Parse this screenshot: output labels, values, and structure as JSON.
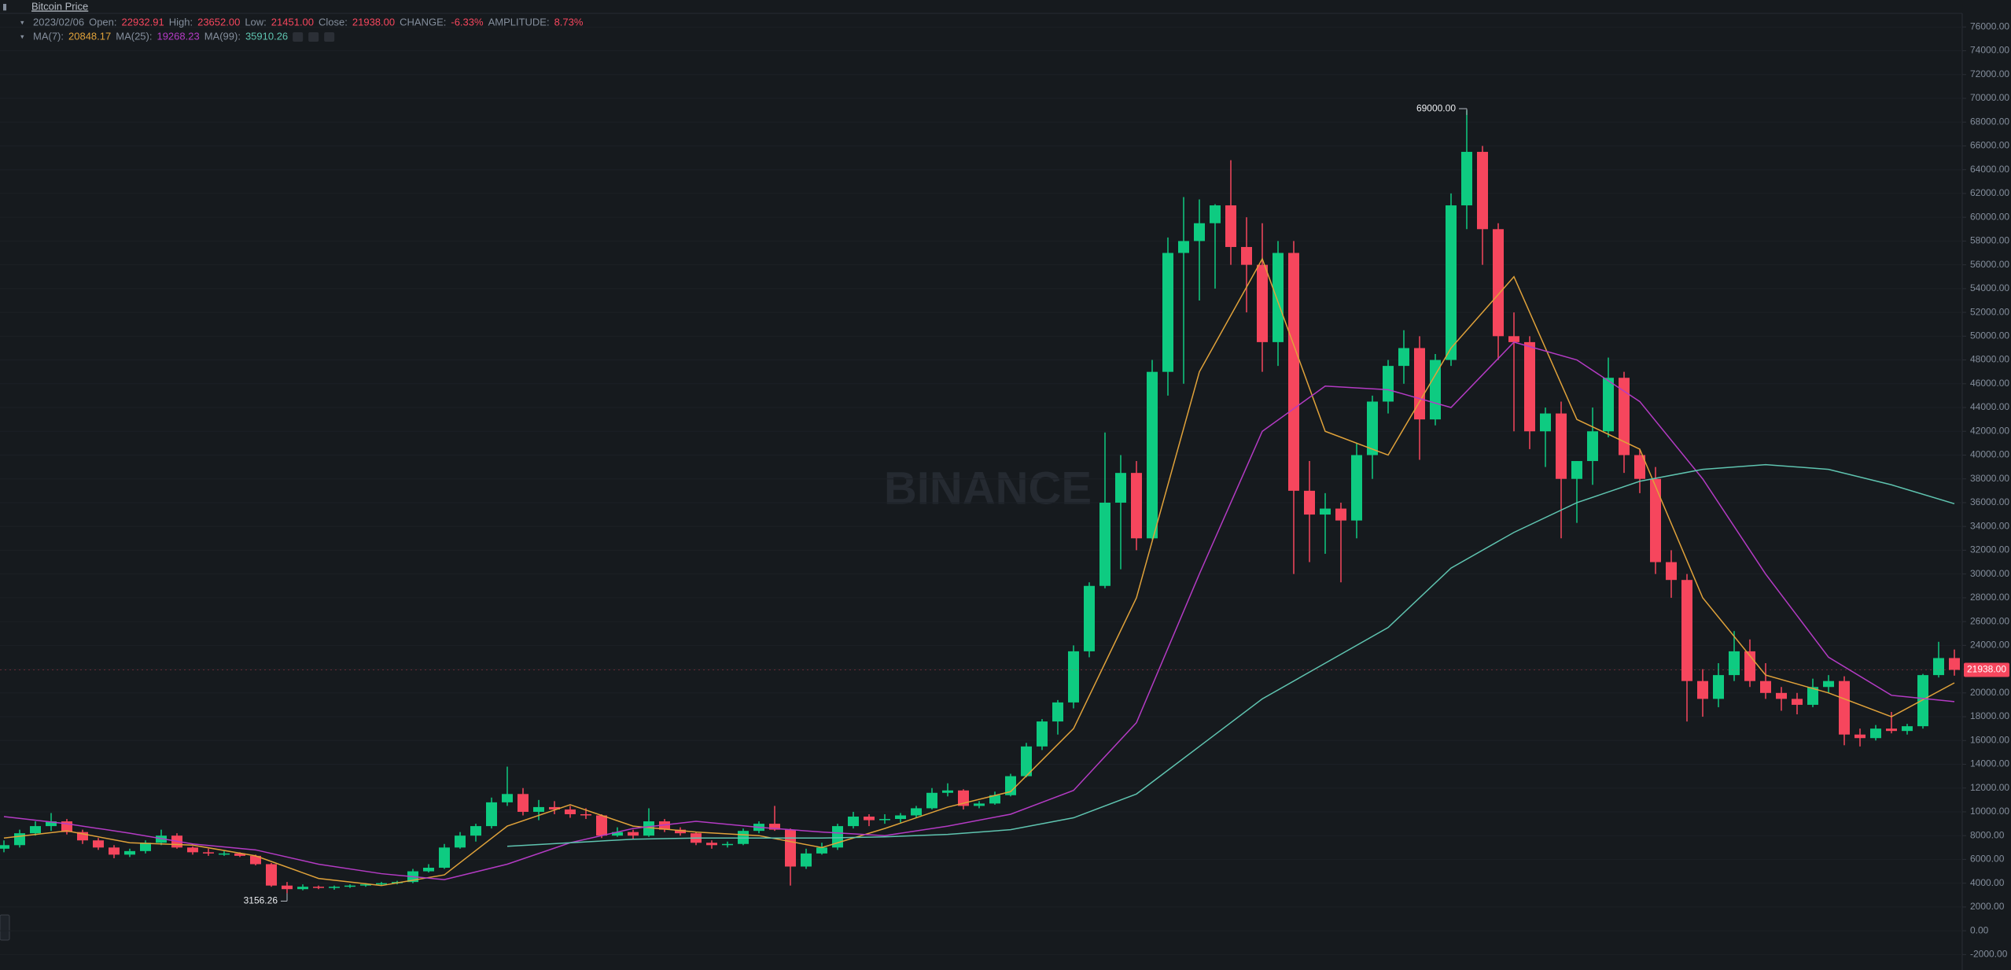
{
  "title": "Bitcoin Price",
  "info": {
    "date": "2023/02/06",
    "fields": [
      {
        "label": "Open:",
        "value": "22932.91"
      },
      {
        "label": "High:",
        "value": "23652.00"
      },
      {
        "label": "Low:",
        "value": "21451.00"
      },
      {
        "label": "Close:",
        "value": "21938.00"
      },
      {
        "label": "CHANGE:",
        "value": "-6.33%"
      },
      {
        "label": "AMPLITUDE:",
        "value": "8.73%"
      }
    ]
  },
  "watermark": "BINANCE",
  "chart_data": {
    "type": "candlestick",
    "up_color": "#0ecb81",
    "down_color": "#f6465d",
    "ylim": [
      -3300,
      78270
    ],
    "yticks": [
      {
        "value": -2000,
        "label": "-2000.00"
      },
      {
        "value": 0,
        "label": "0.00"
      },
      {
        "value": 2000,
        "label": "2000.00"
      },
      {
        "value": 4000,
        "label": "4000.00"
      },
      {
        "value": 6000,
        "label": "6000.00"
      },
      {
        "value": 8000,
        "label": "8000.00"
      },
      {
        "value": 10000,
        "label": "10000.00"
      },
      {
        "value": 12000,
        "label": "12000.00"
      },
      {
        "value": 14000,
        "label": "14000.00"
      },
      {
        "value": 16000,
        "label": "16000.00"
      },
      {
        "value": 18000,
        "label": "18000.00"
      },
      {
        "value": 20000,
        "label": "20000.00"
      },
      {
        "value": 22000,
        "label": "22000.00"
      },
      {
        "value": 24000,
        "label": "24000.00"
      },
      {
        "value": 26000,
        "label": "26000.00"
      },
      {
        "value": 28000,
        "label": "28000.00"
      },
      {
        "value": 30000,
        "label": "30000.00"
      },
      {
        "value": 32000,
        "label": "32000.00"
      },
      {
        "value": 34000,
        "label": "34000.00"
      },
      {
        "value": 36000,
        "label": "36000.00"
      },
      {
        "value": 38000,
        "label": "38000.00"
      },
      {
        "value": 40000,
        "label": "40000.00"
      },
      {
        "value": 42000,
        "label": "42000.00"
      },
      {
        "value": 44000,
        "label": "44000.00"
      },
      {
        "value": 46000,
        "label": "46000.00"
      },
      {
        "value": 48000,
        "label": "48000.00"
      },
      {
        "value": 50000,
        "label": "50000.00"
      },
      {
        "value": 52000,
        "label": "52000.00"
      },
      {
        "value": 54000,
        "label": "54000.00"
      },
      {
        "value": 56000,
        "label": "56000.00"
      },
      {
        "value": 58000,
        "label": "58000.00"
      },
      {
        "value": 60000,
        "label": "60000.00"
      },
      {
        "value": 62000,
        "label": "62000.00"
      },
      {
        "value": 64000,
        "label": "64000.00"
      },
      {
        "value": 66000,
        "label": "66000.00"
      },
      {
        "value": 68000,
        "label": "68000.00"
      },
      {
        "value": 70000,
        "label": "70000.00"
      },
      {
        "value": 72000,
        "label": "72000.00"
      },
      {
        "value": 74000,
        "label": "74000.00"
      },
      {
        "value": 76000,
        "label": "76000.00"
      }
    ],
    "grid": true,
    "ohlc": [
      [
        6900,
        7600,
        6600,
        7200
      ],
      [
        7200,
        8500,
        7000,
        8200
      ],
      [
        8200,
        9200,
        8000,
        8800
      ],
      [
        8800,
        9900,
        8400,
        9200
      ],
      [
        9200,
        9400,
        8100,
        8300
      ],
      [
        8300,
        8500,
        7300,
        7600
      ],
      [
        7600,
        7800,
        6800,
        7000
      ],
      [
        7000,
        7200,
        6100,
        6400
      ],
      [
        6400,
        6900,
        6200,
        6700
      ],
      [
        6700,
        7600,
        6500,
        7400
      ],
      [
        7400,
        8500,
        7200,
        8000
      ],
      [
        8000,
        8200,
        6900,
        7000
      ],
      [
        7000,
        7100,
        6400,
        6600
      ],
      [
        6600,
        6900,
        6300,
        6500
      ],
      [
        6500,
        6700,
        6300,
        6500
      ],
      [
        6500,
        6600,
        6200,
        6300
      ],
      [
        6300,
        6400,
        5500,
        5600
      ],
      [
        5600,
        5700,
        3700,
        3800
      ],
      [
        3800,
        4100,
        3156.26,
        3500
      ],
      [
        3500,
        3900,
        3400,
        3700
      ],
      [
        3700,
        3800,
        3500,
        3600
      ],
      [
        3600,
        3800,
        3450,
        3700
      ],
      [
        3700,
        3900,
        3600,
        3800
      ],
      [
        3800,
        4000,
        3700,
        3900
      ],
      [
        3900,
        4100,
        3800,
        4000
      ],
      [
        4000,
        4200,
        3900,
        4100
      ],
      [
        4100,
        5200,
        4000,
        5000
      ],
      [
        5000,
        5600,
        4900,
        5300
      ],
      [
        5300,
        7300,
        5200,
        7000
      ],
      [
        7000,
        8300,
        6900,
        8000
      ],
      [
        8000,
        9000,
        7500,
        8800
      ],
      [
        8800,
        11200,
        8600,
        10800
      ],
      [
        10800,
        13800,
        10500,
        11500
      ],
      [
        11500,
        12000,
        9700,
        10000
      ],
      [
        10000,
        11000,
        9300,
        10400
      ],
      [
        10400,
        10900,
        9800,
        10200
      ],
      [
        10200,
        10500,
        9500,
        9800
      ],
      [
        9800,
        10300,
        9400,
        9700
      ],
      [
        9700,
        9800,
        7800,
        8000
      ],
      [
        8000,
        8700,
        7900,
        8300
      ],
      [
        8300,
        8500,
        7700,
        8000
      ],
      [
        8000,
        10300,
        7900,
        9200
      ],
      [
        9200,
        9400,
        8300,
        8500
      ],
      [
        8500,
        8700,
        8000,
        8200
      ],
      [
        8200,
        8300,
        7200,
        7400
      ],
      [
        7400,
        7600,
        6900,
        7200
      ],
      [
        7200,
        7500,
        7000,
        7300
      ],
      [
        7300,
        8600,
        7200,
        8400
      ],
      [
        8400,
        9200,
        8200,
        9000
      ],
      [
        9000,
        10500,
        8400,
        8500
      ],
      [
        8500,
        8600,
        3800,
        5400
      ],
      [
        5400,
        6900,
        5200,
        6500
      ],
      [
        6500,
        7400,
        6400,
        7000
      ],
      [
        7000,
        9000,
        6800,
        8800
      ],
      [
        8800,
        10000,
        8600,
        9600
      ],
      [
        9600,
        9800,
        8800,
        9300
      ],
      [
        9300,
        9800,
        9000,
        9400
      ],
      [
        9400,
        9900,
        9100,
        9700
      ],
      [
        9700,
        10500,
        9500,
        10300
      ],
      [
        10300,
        12000,
        10200,
        11600
      ],
      [
        11600,
        12400,
        11300,
        11800
      ],
      [
        11800,
        11900,
        10200,
        10500
      ],
      [
        10500,
        10900,
        10300,
        10700
      ],
      [
        10700,
        11700,
        10600,
        11400
      ],
      [
        11400,
        13200,
        11300,
        13000
      ],
      [
        13000,
        15800,
        12900,
        15500
      ],
      [
        15500,
        17800,
        15200,
        17600
      ],
      [
        17600,
        19400,
        16500,
        19200
      ],
      [
        19200,
        24000,
        18700,
        23500
      ],
      [
        23500,
        29300,
        23000,
        29000
      ],
      [
        29000,
        41900,
        28800,
        36000
      ],
      [
        36000,
        40000,
        30400,
        38500
      ],
      [
        38500,
        39500,
        32000,
        33000
      ],
      [
        33000,
        48000,
        32900,
        47000
      ],
      [
        47000,
        58300,
        45000,
        57000
      ],
      [
        57000,
        61700,
        46000,
        58000
      ],
      [
        58000,
        61500,
        53000,
        59500
      ],
      [
        59500,
        61100,
        54000,
        61000
      ],
      [
        61000,
        64800,
        56000,
        57500
      ],
      [
        57500,
        60000,
        52000,
        56000
      ],
      [
        56000,
        59500,
        47000,
        49500
      ],
      [
        49500,
        58000,
        47500,
        57000
      ],
      [
        57000,
        58000,
        30000,
        37000
      ],
      [
        37000,
        39500,
        31000,
        35000
      ],
      [
        35000,
        36800,
        31700,
        35500
      ],
      [
        35500,
        36000,
        29300,
        34500
      ],
      [
        34500,
        41000,
        33000,
        40000
      ],
      [
        40000,
        45000,
        38000,
        44500
      ],
      [
        44500,
        48000,
        43500,
        47500
      ],
      [
        47500,
        50500,
        46000,
        49000
      ],
      [
        49000,
        50000,
        39600,
        43000
      ],
      [
        43000,
        48500,
        42500,
        48000
      ],
      [
        48000,
        62000,
        47500,
        61000
      ],
      [
        61000,
        69000,
        59000,
        65500
      ],
      [
        65500,
        66000,
        56000,
        59000
      ],
      [
        59000,
        59500,
        48000,
        50000
      ],
      [
        50000,
        52000,
        42000,
        49500
      ],
      [
        49500,
        50000,
        40500,
        42000
      ],
      [
        42000,
        44000,
        39000,
        43500
      ],
      [
        43500,
        44500,
        33000,
        38000
      ],
      [
        38000,
        39500,
        34300,
        39500
      ],
      [
        39500,
        44000,
        37500,
        42000
      ],
      [
        42000,
        48200,
        41500,
        46500
      ],
      [
        46500,
        47000,
        38500,
        40000
      ],
      [
        40000,
        40500,
        36800,
        38000
      ],
      [
        38000,
        39000,
        30000,
        31000
      ],
      [
        31000,
        32000,
        28000,
        29500
      ],
      [
        29500,
        30000,
        17600,
        21000
      ],
      [
        21000,
        22000,
        18000,
        19500
      ],
      [
        19500,
        22500,
        18800,
        21500
      ],
      [
        21500,
        25200,
        21000,
        23500
      ],
      [
        23500,
        24500,
        20500,
        21000
      ],
      [
        21000,
        22500,
        19500,
        20000
      ],
      [
        20000,
        20500,
        18500,
        19500
      ],
      [
        19500,
        20000,
        18200,
        19000
      ],
      [
        19000,
        21200,
        18800,
        20500
      ],
      [
        20500,
        21500,
        20000,
        21000
      ],
      [
        21000,
        21400,
        15600,
        16500
      ],
      [
        16500,
        17000,
        15500,
        16200
      ],
      [
        16200,
        17300,
        16000,
        17000
      ],
      [
        17000,
        18400,
        16600,
        16800
      ],
      [
        16800,
        17400,
        16500,
        17200
      ],
      [
        17200,
        21600,
        17000,
        21500
      ],
      [
        21500,
        24300,
        21300,
        22932.91
      ],
      [
        22932.91,
        23652,
        21451,
        21938
      ]
    ],
    "ma_x": [
      0,
      4,
      8,
      12,
      16,
      20,
      24,
      28,
      32,
      36,
      40,
      44,
      48,
      52,
      56,
      60,
      64,
      68,
      72,
      76,
      80,
      84,
      88,
      92,
      96,
      100,
      104,
      108,
      112,
      116,
      120,
      124
    ],
    "ma": [
      {
        "name": "MA(7):",
        "color": "#e0a23a",
        "last": "20848.17",
        "values": [
          7800,
          8400,
          7400,
          7200,
          6300,
          4400,
          3800,
          4700,
          8800,
          10600,
          8800,
          8300,
          8000,
          7000,
          8600,
          10400,
          11700,
          17000,
          28000,
          47000,
          56500,
          42000,
          40000,
          49000,
          55000,
          43000,
          40500,
          28000,
          21500,
          20000,
          18000,
          20848.17
        ]
      },
      {
        "name": "MA(25):",
        "color": "#b43bc4",
        "last": "19268.23",
        "values": [
          9600,
          9000,
          8200,
          7300,
          6800,
          5600,
          4800,
          4300,
          5600,
          7400,
          8600,
          9200,
          8700,
          8300,
          8000,
          8800,
          9800,
          11800,
          17500,
          30000,
          42000,
          45800,
          45500,
          44000,
          49500,
          48000,
          44500,
          38000,
          30000,
          23000,
          19800,
          19268.23
        ]
      },
      {
        "name": "MA(99):",
        "color": "#5fc4b0",
        "last": "35910.26",
        "values": [
          null,
          null,
          null,
          null,
          null,
          null,
          null,
          null,
          7100,
          7400,
          7700,
          7800,
          7800,
          7800,
          7900,
          8100,
          8500,
          9500,
          11500,
          15500,
          19500,
          22500,
          25500,
          30500,
          33500,
          36000,
          37800,
          38800,
          39200,
          38800,
          37500,
          35910.26
        ]
      }
    ],
    "annotations": [
      {
        "text": "69000.00"
      },
      {
        "text": "3156.26"
      }
    ],
    "last_price": {
      "value": 21938,
      "label": "21938.00"
    }
  }
}
